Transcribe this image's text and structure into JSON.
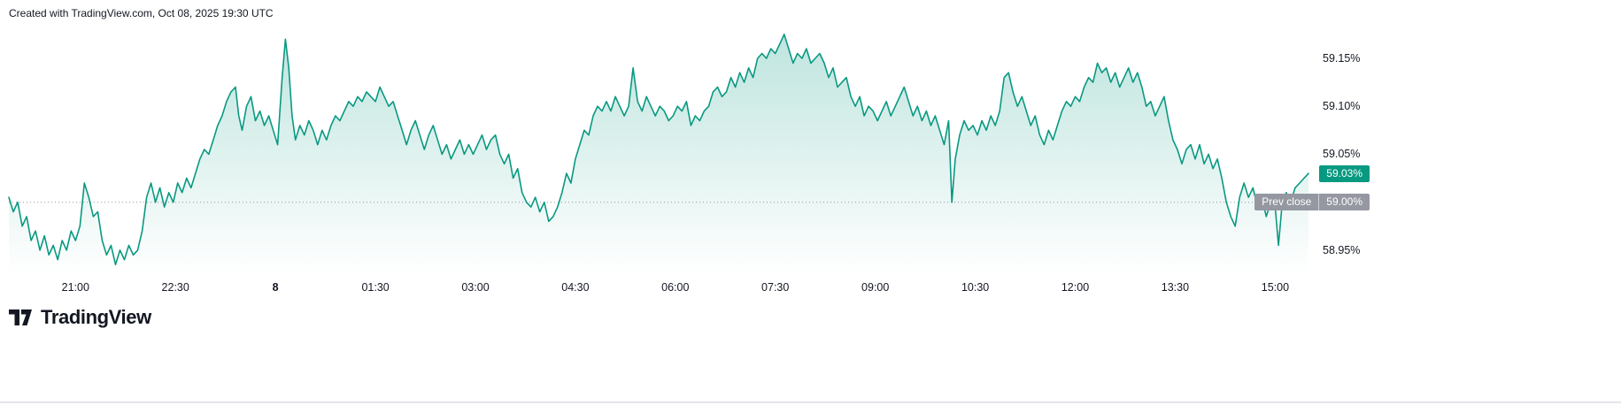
{
  "attribution": "Created with TradingView.com, Oct 08, 2025 19:30 UTC",
  "brand": {
    "name": "TradingView"
  },
  "chart_data": {
    "type": "area",
    "title": "",
    "xlabel": "",
    "ylabel": "",
    "grid": false,
    "legend": false,
    "line_color": "#089981",
    "fill_top": "rgba(8,153,129,0.26)",
    "fill_bottom": "rgba(8,153,129,0)",
    "y_axis": {
      "min": 58.925,
      "max": 59.185,
      "labels": [
        {
          "text": "59.15%",
          "value": 59.15
        },
        {
          "text": "59.10%",
          "value": 59.1
        },
        {
          "text": "59.05%",
          "value": 59.05
        },
        {
          "text": "58.95%",
          "value": 58.95
        }
      ]
    },
    "current": {
      "text": "59.03%",
      "value": 59.03,
      "color": "#089981"
    },
    "prev_close": {
      "label": "Prev close",
      "text": "59.00%",
      "value": 59.0,
      "color": "#9598a1"
    },
    "x_ticks": [
      {
        "label": "21:00",
        "t": 60
      },
      {
        "label": "22:30",
        "t": 150
      },
      {
        "label": "8",
        "t": 240,
        "bold": true
      },
      {
        "label": "01:30",
        "t": 330
      },
      {
        "label": "03:00",
        "t": 420
      },
      {
        "label": "04:30",
        "t": 510
      },
      {
        "label": "06:00",
        "t": 600
      },
      {
        "label": "07:30",
        "t": 690
      },
      {
        "label": "09:00",
        "t": 780
      },
      {
        "label": "10:30",
        "t": 870
      },
      {
        "label": "12:00",
        "t": 960
      },
      {
        "label": "13:30",
        "t": 1050
      },
      {
        "label": "15:00",
        "t": 1140
      }
    ],
    "points": [
      [
        0,
        59.005
      ],
      [
        4,
        58.99
      ],
      [
        8,
        59.0
      ],
      [
        12,
        58.975
      ],
      [
        16,
        58.985
      ],
      [
        20,
        58.96
      ],
      [
        24,
        58.97
      ],
      [
        28,
        58.95
      ],
      [
        32,
        58.965
      ],
      [
        36,
        58.945
      ],
      [
        40,
        58.955
      ],
      [
        44,
        58.94
      ],
      [
        48,
        58.96
      ],
      [
        52,
        58.95
      ],
      [
        56,
        58.97
      ],
      [
        60,
        58.96
      ],
      [
        64,
        58.975
      ],
      [
        68,
        59.02
      ],
      [
        72,
        59.005
      ],
      [
        76,
        58.985
      ],
      [
        80,
        58.99
      ],
      [
        84,
        58.96
      ],
      [
        88,
        58.945
      ],
      [
        92,
        58.955
      ],
      [
        96,
        58.935
      ],
      [
        100,
        58.95
      ],
      [
        104,
        58.94
      ],
      [
        108,
        58.955
      ],
      [
        112,
        58.945
      ],
      [
        116,
        58.95
      ],
      [
        120,
        58.97
      ],
      [
        124,
        59.005
      ],
      [
        128,
        59.02
      ],
      [
        132,
        59.0
      ],
      [
        136,
        59.015
      ],
      [
        140,
        58.995
      ],
      [
        144,
        59.01
      ],
      [
        148,
        59.0
      ],
      [
        152,
        59.02
      ],
      [
        156,
        59.01
      ],
      [
        160,
        59.025
      ],
      [
        164,
        59.015
      ],
      [
        168,
        59.03
      ],
      [
        172,
        59.045
      ],
      [
        176,
        59.055
      ],
      [
        180,
        59.05
      ],
      [
        184,
        59.065
      ],
      [
        188,
        59.08
      ],
      [
        192,
        59.09
      ],
      [
        196,
        59.105
      ],
      [
        200,
        59.115
      ],
      [
        204,
        59.12
      ],
      [
        207,
        59.09
      ],
      [
        210,
        59.075
      ],
      [
        214,
        59.1
      ],
      [
        218,
        59.11
      ],
      [
        222,
        59.085
      ],
      [
        226,
        59.095
      ],
      [
        230,
        59.08
      ],
      [
        234,
        59.09
      ],
      [
        238,
        59.075
      ],
      [
        242,
        59.06
      ],
      [
        246,
        59.13
      ],
      [
        249,
        59.17
      ],
      [
        252,
        59.14
      ],
      [
        255,
        59.09
      ],
      [
        258,
        59.065
      ],
      [
        262,
        59.08
      ],
      [
        266,
        59.07
      ],
      [
        270,
        59.085
      ],
      [
        274,
        59.075
      ],
      [
        278,
        59.06
      ],
      [
        282,
        59.075
      ],
      [
        286,
        59.065
      ],
      [
        290,
        59.08
      ],
      [
        294,
        59.09
      ],
      [
        298,
        59.085
      ],
      [
        302,
        59.095
      ],
      [
        306,
        59.105
      ],
      [
        310,
        59.1
      ],
      [
        314,
        59.11
      ],
      [
        318,
        59.105
      ],
      [
        322,
        59.115
      ],
      [
        326,
        59.11
      ],
      [
        330,
        59.105
      ],
      [
        334,
        59.12
      ],
      [
        338,
        59.11
      ],
      [
        342,
        59.1
      ],
      [
        346,
        59.105
      ],
      [
        350,
        59.09
      ],
      [
        354,
        59.075
      ],
      [
        358,
        59.06
      ],
      [
        362,
        59.075
      ],
      [
        366,
        59.085
      ],
      [
        370,
        59.07
      ],
      [
        374,
        59.055
      ],
      [
        378,
        59.07
      ],
      [
        382,
        59.08
      ],
      [
        386,
        59.065
      ],
      [
        390,
        59.05
      ],
      [
        394,
        59.06
      ],
      [
        398,
        59.045
      ],
      [
        402,
        59.055
      ],
      [
        406,
        59.065
      ],
      [
        410,
        59.05
      ],
      [
        414,
        59.06
      ],
      [
        418,
        59.05
      ],
      [
        422,
        59.06
      ],
      [
        426,
        59.07
      ],
      [
        430,
        59.055
      ],
      [
        434,
        59.065
      ],
      [
        438,
        59.07
      ],
      [
        442,
        59.05
      ],
      [
        446,
        59.04
      ],
      [
        450,
        59.05
      ],
      [
        454,
        59.025
      ],
      [
        458,
        59.035
      ],
      [
        462,
        59.01
      ],
      [
        466,
        59.0
      ],
      [
        470,
        58.995
      ],
      [
        474,
        59.005
      ],
      [
        478,
        58.99
      ],
      [
        482,
        59.0
      ],
      [
        486,
        58.98
      ],
      [
        490,
        58.985
      ],
      [
        494,
        58.995
      ],
      [
        498,
        59.01
      ],
      [
        502,
        59.03
      ],
      [
        506,
        59.02
      ],
      [
        510,
        59.045
      ],
      [
        514,
        59.06
      ],
      [
        518,
        59.075
      ],
      [
        522,
        59.07
      ],
      [
        526,
        59.09
      ],
      [
        530,
        59.1
      ],
      [
        534,
        59.095
      ],
      [
        538,
        59.105
      ],
      [
        542,
        59.095
      ],
      [
        546,
        59.11
      ],
      [
        550,
        59.1
      ],
      [
        554,
        59.09
      ],
      [
        558,
        59.1
      ],
      [
        562,
        59.14
      ],
      [
        566,
        59.105
      ],
      [
        570,
        59.095
      ],
      [
        574,
        59.11
      ],
      [
        578,
        59.1
      ],
      [
        582,
        59.09
      ],
      [
        586,
        59.1
      ],
      [
        590,
        59.095
      ],
      [
        594,
        59.085
      ],
      [
        598,
        59.09
      ],
      [
        602,
        59.1
      ],
      [
        606,
        59.095
      ],
      [
        610,
        59.105
      ],
      [
        614,
        59.08
      ],
      [
        618,
        59.09
      ],
      [
        622,
        59.085
      ],
      [
        626,
        59.095
      ],
      [
        630,
        59.1
      ],
      [
        634,
        59.115
      ],
      [
        638,
        59.12
      ],
      [
        642,
        59.11
      ],
      [
        646,
        59.115
      ],
      [
        650,
        59.13
      ],
      [
        654,
        59.12
      ],
      [
        658,
        59.135
      ],
      [
        662,
        59.125
      ],
      [
        666,
        59.14
      ],
      [
        670,
        59.13
      ],
      [
        674,
        59.15
      ],
      [
        678,
        59.155
      ],
      [
        682,
        59.15
      ],
      [
        686,
        59.16
      ],
      [
        690,
        59.155
      ],
      [
        694,
        59.165
      ],
      [
        698,
        59.175
      ],
      [
        702,
        59.16
      ],
      [
        706,
        59.145
      ],
      [
        710,
        59.155
      ],
      [
        714,
        59.15
      ],
      [
        718,
        59.16
      ],
      [
        722,
        59.145
      ],
      [
        726,
        59.15
      ],
      [
        730,
        59.155
      ],
      [
        734,
        59.145
      ],
      [
        738,
        59.13
      ],
      [
        742,
        59.14
      ],
      [
        746,
        59.12
      ],
      [
        750,
        59.125
      ],
      [
        754,
        59.13
      ],
      [
        758,
        59.11
      ],
      [
        762,
        59.1
      ],
      [
        766,
        59.11
      ],
      [
        770,
        59.09
      ],
      [
        774,
        59.1
      ],
      [
        778,
        59.095
      ],
      [
        782,
        59.085
      ],
      [
        786,
        59.095
      ],
      [
        790,
        59.105
      ],
      [
        794,
        59.09
      ],
      [
        798,
        59.1
      ],
      [
        802,
        59.11
      ],
      [
        806,
        59.12
      ],
      [
        810,
        59.105
      ],
      [
        814,
        59.09
      ],
      [
        818,
        59.1
      ],
      [
        822,
        59.085
      ],
      [
        826,
        59.095
      ],
      [
        830,
        59.08
      ],
      [
        834,
        59.09
      ],
      [
        838,
        59.075
      ],
      [
        842,
        59.06
      ],
      [
        846,
        59.085
      ],
      [
        849,
        59.0
      ],
      [
        852,
        59.045
      ],
      [
        856,
        59.07
      ],
      [
        860,
        59.085
      ],
      [
        864,
        59.075
      ],
      [
        868,
        59.08
      ],
      [
        872,
        59.07
      ],
      [
        876,
        59.085
      ],
      [
        880,
        59.075
      ],
      [
        884,
        59.09
      ],
      [
        888,
        59.08
      ],
      [
        892,
        59.095
      ],
      [
        896,
        59.13
      ],
      [
        900,
        59.135
      ],
      [
        904,
        59.115
      ],
      [
        908,
        59.1
      ],
      [
        912,
        59.11
      ],
      [
        916,
        59.095
      ],
      [
        920,
        59.08
      ],
      [
        924,
        59.09
      ],
      [
        928,
        59.07
      ],
      [
        932,
        59.06
      ],
      [
        936,
        59.075
      ],
      [
        940,
        59.065
      ],
      [
        944,
        59.08
      ],
      [
        948,
        59.095
      ],
      [
        952,
        59.105
      ],
      [
        956,
        59.1
      ],
      [
        960,
        59.11
      ],
      [
        964,
        59.105
      ],
      [
        968,
        59.12
      ],
      [
        972,
        59.13
      ],
      [
        976,
        59.125
      ],
      [
        980,
        59.145
      ],
      [
        984,
        59.135
      ],
      [
        988,
        59.14
      ],
      [
        992,
        59.125
      ],
      [
        996,
        59.135
      ],
      [
        1000,
        59.12
      ],
      [
        1004,
        59.13
      ],
      [
        1008,
        59.14
      ],
      [
        1012,
        59.125
      ],
      [
        1016,
        59.135
      ],
      [
        1020,
        59.12
      ],
      [
        1024,
        59.1
      ],
      [
        1028,
        59.105
      ],
      [
        1032,
        59.09
      ],
      [
        1036,
        59.1
      ],
      [
        1040,
        59.11
      ],
      [
        1044,
        59.085
      ],
      [
        1048,
        59.065
      ],
      [
        1052,
        59.055
      ],
      [
        1056,
        59.04
      ],
      [
        1060,
        59.055
      ],
      [
        1064,
        59.06
      ],
      [
        1068,
        59.045
      ],
      [
        1072,
        59.06
      ],
      [
        1076,
        59.04
      ],
      [
        1080,
        59.05
      ],
      [
        1084,
        59.035
      ],
      [
        1088,
        59.045
      ],
      [
        1092,
        59.025
      ],
      [
        1096,
        59.0
      ],
      [
        1100,
        58.985
      ],
      [
        1104,
        58.975
      ],
      [
        1108,
        59.005
      ],
      [
        1112,
        59.02
      ],
      [
        1116,
        59.005
      ],
      [
        1120,
        59.015
      ],
      [
        1124,
        58.995
      ],
      [
        1128,
        59.005
      ],
      [
        1132,
        58.985
      ],
      [
        1136,
        59.0
      ],
      [
        1140,
        58.995
      ],
      [
        1143,
        58.955
      ],
      [
        1146,
        58.995
      ],
      [
        1150,
        59.01
      ],
      [
        1154,
        59.0
      ],
      [
        1158,
        59.015
      ],
      [
        1162,
        59.02
      ],
      [
        1166,
        59.025
      ],
      [
        1170,
        59.03
      ]
    ]
  }
}
